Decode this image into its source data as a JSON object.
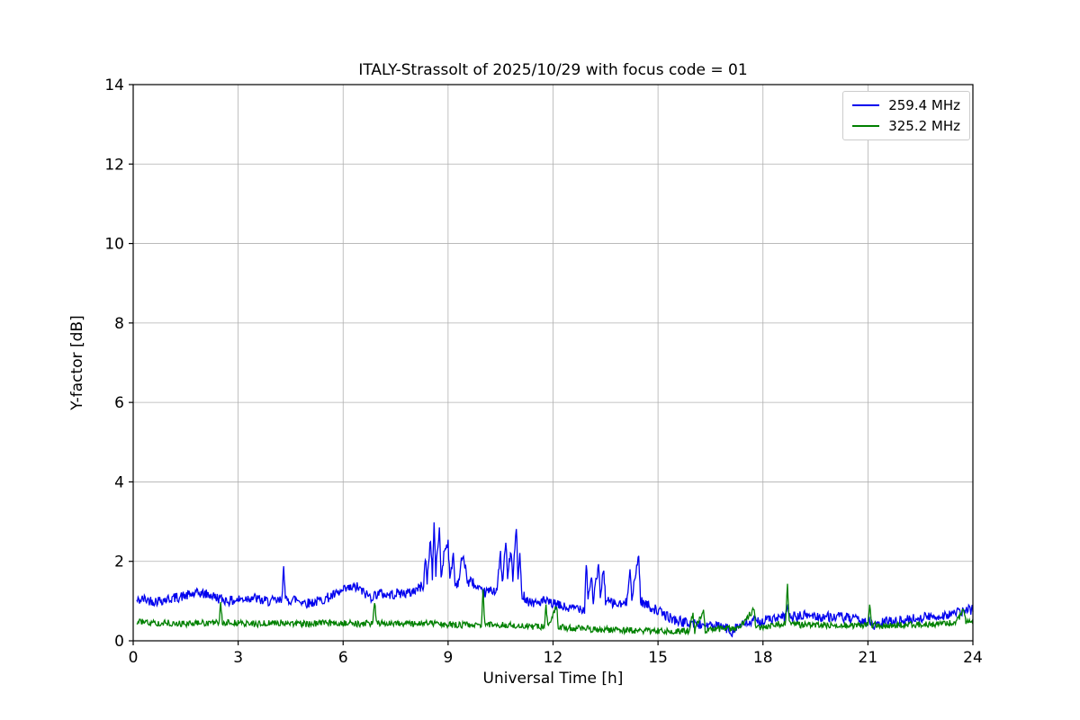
{
  "figure": {
    "background": "#ffffff"
  },
  "chart_data": {
    "type": "line",
    "title": "ITALY-Strassolt of 2025/10/29 with focus code = 01",
    "xlabel": "Universal Time [h]",
    "ylabel": "Y-factor [dB]",
    "xlim": [
      0,
      24
    ],
    "ylim": [
      0,
      14
    ],
    "xticks": [
      0,
      3,
      6,
      9,
      12,
      15,
      18,
      21,
      24
    ],
    "yticks": [
      0,
      2,
      4,
      6,
      8,
      10,
      12,
      14
    ],
    "grid": true,
    "grid_color": "#b0b0b0",
    "legend_position": "upper right",
    "series": [
      {
        "name": "259.4 MHz",
        "color": "#0000ee",
        "noise": 0.13,
        "points": [
          [
            0.1,
            1.0
          ],
          [
            0.3,
            1.05
          ],
          [
            0.6,
            1.0
          ],
          [
            1.0,
            1.05
          ],
          [
            1.3,
            1.1
          ],
          [
            1.6,
            1.15
          ],
          [
            1.9,
            1.2
          ],
          [
            2.2,
            1.15
          ],
          [
            2.5,
            1.05
          ],
          [
            2.8,
            1.0
          ],
          [
            3.1,
            1.05
          ],
          [
            3.4,
            1.1
          ],
          [
            3.7,
            1.0
          ],
          [
            4.0,
            1.0
          ],
          [
            4.25,
            1.0
          ],
          [
            4.3,
            2.0
          ],
          [
            4.35,
            1.0
          ],
          [
            4.6,
            1.05
          ],
          [
            5.0,
            0.95
          ],
          [
            5.3,
            1.0
          ],
          [
            5.6,
            1.1
          ],
          [
            5.9,
            1.2
          ],
          [
            6.1,
            1.3
          ],
          [
            6.4,
            1.35
          ],
          [
            6.6,
            1.2
          ],
          [
            6.8,
            1.1
          ],
          [
            7.0,
            1.2
          ],
          [
            7.3,
            1.15
          ],
          [
            7.6,
            1.2
          ],
          [
            7.9,
            1.2
          ],
          [
            8.1,
            1.3
          ],
          [
            8.3,
            1.4
          ],
          [
            8.35,
            2.1
          ],
          [
            8.4,
            1.5
          ],
          [
            8.5,
            2.6
          ],
          [
            8.55,
            1.6
          ],
          [
            8.6,
            2.95
          ],
          [
            8.65,
            1.7
          ],
          [
            8.75,
            2.85
          ],
          [
            8.8,
            1.6
          ],
          [
            8.9,
            2.3
          ],
          [
            9.0,
            2.5
          ],
          [
            9.05,
            1.5
          ],
          [
            9.15,
            2.2
          ],
          [
            9.2,
            1.4
          ],
          [
            9.3,
            1.5
          ],
          [
            9.4,
            2.1
          ],
          [
            9.5,
            1.9
          ],
          [
            9.55,
            1.45
          ],
          [
            9.7,
            1.5
          ],
          [
            9.8,
            1.3
          ],
          [
            10.0,
            1.2
          ],
          [
            10.2,
            1.25
          ],
          [
            10.4,
            1.3
          ],
          [
            10.5,
            2.2
          ],
          [
            10.55,
            1.4
          ],
          [
            10.65,
            2.5
          ],
          [
            10.7,
            1.6
          ],
          [
            10.8,
            2.3
          ],
          [
            10.85,
            1.5
          ],
          [
            10.95,
            2.9
          ],
          [
            11.0,
            1.5
          ],
          [
            11.05,
            2.2
          ],
          [
            11.1,
            1.2
          ],
          [
            11.3,
            1.0
          ],
          [
            11.5,
            0.95
          ],
          [
            11.7,
            1.0
          ],
          [
            11.9,
            0.95
          ],
          [
            12.1,
            0.9
          ],
          [
            12.3,
            0.85
          ],
          [
            12.5,
            0.8
          ],
          [
            12.7,
            0.85
          ],
          [
            12.9,
            0.8
          ],
          [
            12.95,
            2.0
          ],
          [
            13.0,
            1.1
          ],
          [
            13.1,
            1.6
          ],
          [
            13.15,
            1.0
          ],
          [
            13.3,
            1.9
          ],
          [
            13.35,
            1.1
          ],
          [
            13.45,
            1.85
          ],
          [
            13.5,
            1.0
          ],
          [
            13.7,
            0.95
          ],
          [
            13.9,
            0.9
          ],
          [
            14.1,
            0.95
          ],
          [
            14.2,
            1.9
          ],
          [
            14.25,
            1.0
          ],
          [
            14.45,
            2.2
          ],
          [
            14.5,
            1.0
          ],
          [
            14.6,
            0.95
          ],
          [
            14.8,
            0.85
          ],
          [
            15.0,
            0.75
          ],
          [
            15.2,
            0.65
          ],
          [
            15.4,
            0.55
          ],
          [
            15.6,
            0.5
          ],
          [
            15.8,
            0.45
          ],
          [
            16.0,
            0.45
          ],
          [
            16.2,
            0.4
          ],
          [
            16.4,
            0.4
          ],
          [
            16.6,
            0.35
          ],
          [
            16.8,
            0.35
          ],
          [
            17.0,
            0.3
          ],
          [
            17.1,
            0.2
          ],
          [
            17.2,
            0.35
          ],
          [
            17.4,
            0.4
          ],
          [
            17.6,
            0.45
          ],
          [
            17.8,
            0.5
          ],
          [
            18.0,
            0.5
          ],
          [
            18.2,
            0.55
          ],
          [
            18.4,
            0.55
          ],
          [
            18.65,
            0.6
          ],
          [
            18.7,
            0.95
          ],
          [
            18.75,
            0.6
          ],
          [
            19.0,
            0.6
          ],
          [
            19.3,
            0.65
          ],
          [
            19.6,
            0.6
          ],
          [
            19.9,
            0.6
          ],
          [
            20.2,
            0.6
          ],
          [
            20.5,
            0.55
          ],
          [
            20.8,
            0.5
          ],
          [
            21.0,
            0.5
          ],
          [
            21.2,
            0.35
          ],
          [
            21.4,
            0.45
          ],
          [
            21.6,
            0.5
          ],
          [
            21.8,
            0.5
          ],
          [
            22.0,
            0.5
          ],
          [
            22.3,
            0.55
          ],
          [
            22.6,
            0.6
          ],
          [
            22.9,
            0.6
          ],
          [
            23.2,
            0.65
          ],
          [
            23.5,
            0.7
          ],
          [
            23.8,
            0.75
          ],
          [
            24.0,
            0.8
          ]
        ]
      },
      {
        "name": "325.2 MHz",
        "color": "#008000",
        "noise": 0.08,
        "points": [
          [
            0.1,
            0.5
          ],
          [
            0.5,
            0.45
          ],
          [
            1.0,
            0.45
          ],
          [
            1.5,
            0.42
          ],
          [
            2.0,
            0.45
          ],
          [
            2.45,
            0.45
          ],
          [
            2.5,
            0.9
          ],
          [
            2.55,
            0.45
          ],
          [
            3.0,
            0.45
          ],
          [
            3.5,
            0.42
          ],
          [
            4.0,
            0.45
          ],
          [
            4.5,
            0.45
          ],
          [
            5.0,
            0.42
          ],
          [
            5.5,
            0.45
          ],
          [
            6.0,
            0.45
          ],
          [
            6.5,
            0.42
          ],
          [
            6.85,
            0.45
          ],
          [
            6.9,
            1.0
          ],
          [
            6.95,
            0.45
          ],
          [
            7.5,
            0.45
          ],
          [
            8.0,
            0.42
          ],
          [
            8.5,
            0.45
          ],
          [
            9.0,
            0.4
          ],
          [
            9.5,
            0.4
          ],
          [
            9.95,
            0.4
          ],
          [
            10.0,
            1.35
          ],
          [
            10.05,
            0.4
          ],
          [
            10.5,
            0.4
          ],
          [
            11.0,
            0.38
          ],
          [
            11.5,
            0.35
          ],
          [
            11.75,
            0.35
          ],
          [
            11.8,
            0.9
          ],
          [
            11.85,
            0.35
          ],
          [
            12.1,
            0.9
          ],
          [
            12.15,
            0.35
          ],
          [
            12.5,
            0.32
          ],
          [
            13.0,
            0.3
          ],
          [
            13.5,
            0.28
          ],
          [
            14.0,
            0.27
          ],
          [
            14.5,
            0.25
          ],
          [
            15.0,
            0.25
          ],
          [
            15.5,
            0.25
          ],
          [
            15.9,
            0.25
          ],
          [
            16.0,
            0.7
          ],
          [
            16.05,
            0.25
          ],
          [
            16.3,
            0.8
          ],
          [
            16.35,
            0.25
          ],
          [
            16.6,
            0.3
          ],
          [
            17.0,
            0.3
          ],
          [
            17.3,
            0.3
          ],
          [
            17.75,
            0.8
          ],
          [
            17.8,
            0.3
          ],
          [
            18.0,
            0.35
          ],
          [
            18.3,
            0.4
          ],
          [
            18.65,
            0.45
          ],
          [
            18.7,
            1.5
          ],
          [
            18.75,
            0.45
          ],
          [
            19.0,
            0.4
          ],
          [
            19.5,
            0.4
          ],
          [
            20.0,
            0.4
          ],
          [
            20.5,
            0.38
          ],
          [
            21.0,
            0.4
          ],
          [
            21.05,
            0.9
          ],
          [
            21.1,
            0.4
          ],
          [
            21.5,
            0.38
          ],
          [
            22.0,
            0.4
          ],
          [
            22.5,
            0.4
          ],
          [
            23.0,
            0.42
          ],
          [
            23.5,
            0.45
          ],
          [
            23.75,
            0.8
          ],
          [
            23.8,
            0.45
          ],
          [
            24.0,
            0.5
          ]
        ]
      }
    ]
  }
}
